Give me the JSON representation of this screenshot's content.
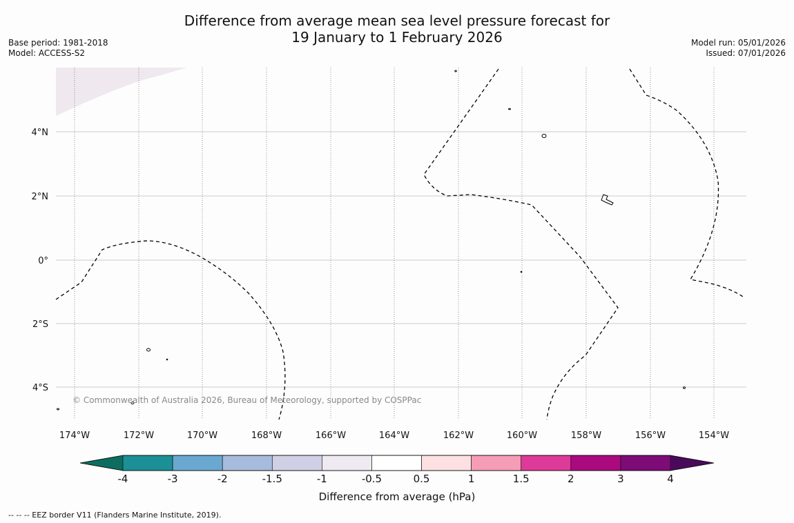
{
  "title": {
    "line1": "Difference from average mean sea level pressure forecast for",
    "line2": "19 January to 1 February 2026"
  },
  "meta_left": {
    "base_period": "Base period: 1981-2018",
    "model": "Model: ACCESS-S2"
  },
  "meta_right": {
    "model_run": "Model run: 05/01/2026",
    "issued": "Issued: 07/01/2026"
  },
  "map": {
    "lon_labels": [
      "174°W",
      "172°W",
      "170°W",
      "168°W",
      "166°W",
      "164°W",
      "162°W",
      "160°W",
      "158°W",
      "156°W",
      "154°W"
    ],
    "lat_labels": [
      "4°N",
      "2°N",
      "0°",
      "2°S",
      "4°S"
    ],
    "copyright": "© Commonwealth of Australia 2026, Bureau of Meteorology, supported by COSPPac",
    "colors": {
      "shaded_region": "#efe8ef",
      "eez_line": "#000000",
      "grid": "#bbbbbb"
    }
  },
  "colorbar": {
    "title": "Difference from average (hPa)",
    "tick_labels": [
      "-4",
      "-3",
      "-2",
      "-1.5",
      "-1",
      "-0.5",
      "0.5",
      "1",
      "1.5",
      "2",
      "3",
      "4"
    ],
    "bins": [
      {
        "range": "< -4",
        "color": "#0d6d5e"
      },
      {
        "range": "-4 to -3",
        "color": "#1d8f96"
      },
      {
        "range": "-3 to -2",
        "color": "#6aa8d0"
      },
      {
        "range": "-2 to -1.5",
        "color": "#a7bbdc"
      },
      {
        "range": "-1.5 to -1",
        "color": "#cfd0e6"
      },
      {
        "range": "-1 to -0.5",
        "color": "#efe9f1"
      },
      {
        "range": "-0.5 to 0.5",
        "color": "#ffffff"
      },
      {
        "range": "0.5 to 1",
        "color": "#fde0e2"
      },
      {
        "range": "1 to 1.5",
        "color": "#f59cb6"
      },
      {
        "range": "1.5 to 2",
        "color": "#dd3a99"
      },
      {
        "range": "2 to 3",
        "color": "#ab0a7f"
      },
      {
        "range": "3 to 4",
        "color": "#7d0c77"
      },
      {
        "range": "> 4",
        "color": "#4a0a5a"
      }
    ]
  },
  "footer": "--  --  -- EEZ border V11 (Flanders Marine Institute, 2019)."
}
